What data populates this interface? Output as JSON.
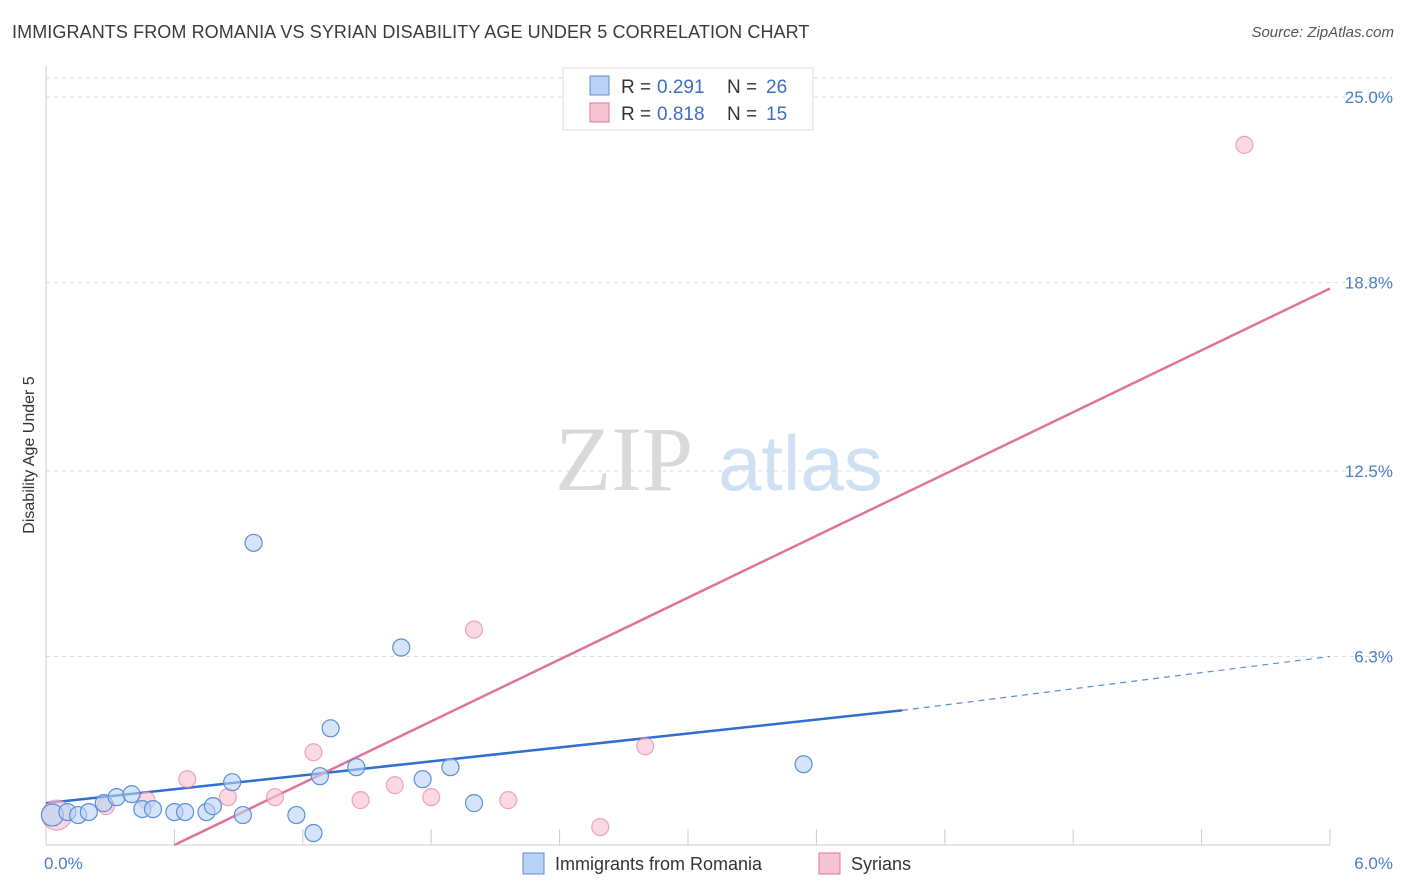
{
  "title": "IMMIGRANTS FROM ROMANIA VS SYRIAN DISABILITY AGE UNDER 5 CORRELATION CHART",
  "source": "Source: ZipAtlas.com",
  "watermark": {
    "zip": "ZIP",
    "atlas": "atlas"
  },
  "colors": {
    "romania": "#5b8fd6",
    "romania_fill": "#b9d2f3",
    "syrians": "#e0739b",
    "syrians_fill": "#f7c4d4",
    "tick_label": "#4a7cc7"
  },
  "chart_data": {
    "type": "scatter",
    "title": "IMMIGRANTS FROM ROMANIA VS SYRIAN DISABILITY AGE UNDER 5 CORRELATION CHART",
    "xlabel": "",
    "ylabel": "Disability Age Under 5",
    "xlim": [
      0,
      6
    ],
    "ylim": [
      0,
      25.0
    ],
    "x_tick_labels": [
      "0.0%",
      "6.0%"
    ],
    "y_ticks": [
      6.3,
      12.5,
      18.8,
      25.0
    ],
    "y_tick_labels": [
      "6.3%",
      "12.5%",
      "18.8%",
      "25.0%"
    ],
    "grid": true,
    "legend": {
      "placement": "top-center",
      "entries": [
        {
          "r_label": "R =",
          "r": "0.291",
          "n_label": "N =",
          "n": "26"
        },
        {
          "r_label": "R =",
          "r": "0.818",
          "n_label": "N =",
          "n": "15"
        }
      ]
    },
    "series": [
      {
        "name": "Immigrants from Romania",
        "points": [
          [
            0.03,
            1.0
          ],
          [
            0.1,
            1.1
          ],
          [
            0.15,
            1.0
          ],
          [
            0.2,
            1.1
          ],
          [
            0.27,
            1.4
          ],
          [
            0.33,
            1.6
          ],
          [
            0.4,
            1.7
          ],
          [
            0.45,
            1.2
          ],
          [
            0.5,
            1.2
          ],
          [
            0.6,
            1.1
          ],
          [
            0.65,
            1.1
          ],
          [
            0.75,
            1.1
          ],
          [
            0.78,
            1.3
          ],
          [
            0.87,
            2.1
          ],
          [
            0.92,
            1.0
          ],
          [
            0.97,
            10.1
          ],
          [
            1.17,
            1.0
          ],
          [
            1.25,
            0.4
          ],
          [
            1.28,
            2.3
          ],
          [
            1.33,
            3.9
          ],
          [
            1.45,
            2.6
          ],
          [
            1.66,
            6.6
          ],
          [
            1.76,
            2.2
          ],
          [
            1.89,
            2.6
          ],
          [
            2.0,
            1.4
          ],
          [
            3.54,
            2.7
          ]
        ],
        "trend": {
          "x0": 0,
          "y0": 1.4,
          "x1": 4.0,
          "y1": 4.5,
          "dashed_to_x": 6.0,
          "dashed_to_y": 6.3
        }
      },
      {
        "name": "Syrians",
        "points": [
          [
            0.05,
            1.0
          ],
          [
            0.28,
            1.3
          ],
          [
            0.47,
            1.5
          ],
          [
            0.66,
            2.2
          ],
          [
            0.85,
            1.6
          ],
          [
            1.07,
            1.6
          ],
          [
            1.25,
            3.1
          ],
          [
            1.47,
            1.5
          ],
          [
            1.63,
            2.0
          ],
          [
            1.8,
            1.6
          ],
          [
            2.0,
            7.2
          ],
          [
            2.16,
            1.5
          ],
          [
            2.59,
            0.6
          ],
          [
            2.8,
            3.3
          ],
          [
            5.6,
            23.4
          ]
        ],
        "trend": {
          "x0": 0.6,
          "y0": 0.0,
          "x1": 6.0,
          "y1": 18.6
        }
      }
    ]
  }
}
